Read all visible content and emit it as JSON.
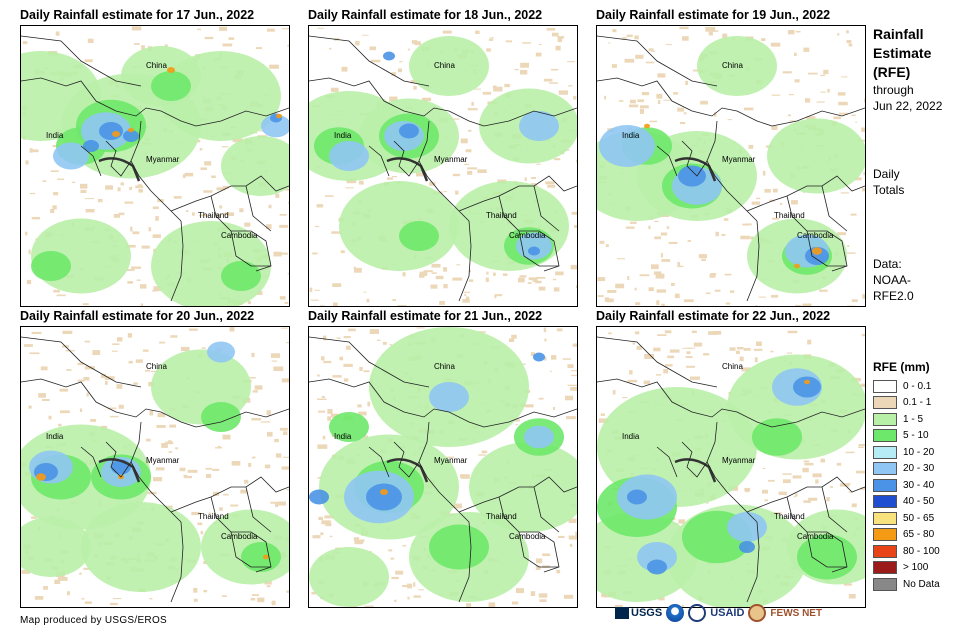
{
  "panels": [
    {
      "title": "Daily Rainfall estimate for 17 Jun., 2022"
    },
    {
      "title": "Daily Rainfall estimate for 18 Jun., 2022"
    },
    {
      "title": "Daily Rainfall estimate for 19 Jun., 2022"
    },
    {
      "title": "Daily Rainfall estimate for 20 Jun., 2022"
    },
    {
      "title": "Daily Rainfall estimate for 21 Jun., 2022"
    },
    {
      "title": "Daily Rainfall estimate for 22 Jun., 2022"
    }
  ],
  "map_labels": {
    "china": "China",
    "india": "India",
    "myanmar": "Myanmar",
    "thailand": "Thailand",
    "cambodia": "Cambodia"
  },
  "side": {
    "title_line1": "Rainfall",
    "title_line2": "Estimate",
    "title_line3": "(RFE)",
    "through": "through",
    "through_date": "Jun 22, 2022",
    "daily": "Daily",
    "totals": "Totals",
    "data_label": "Data:",
    "data_source1": "NOAA-",
    "data_source2": "RFE2.0"
  },
  "legend": {
    "title": "RFE (mm)",
    "items": [
      {
        "label": "0 - 0.1",
        "color": "#ffffff"
      },
      {
        "label": "0.1 - 1",
        "color": "#ecd8b8"
      },
      {
        "label": "1 - 5",
        "color": "#b9f0a8"
      },
      {
        "label": "5 - 10",
        "color": "#6ee86a"
      },
      {
        "label": "10 - 20",
        "color": "#b5ecf5"
      },
      {
        "label": "20 - 30",
        "color": "#8fc6f3"
      },
      {
        "label": "30 - 40",
        "color": "#4a93e6"
      },
      {
        "label": "40 - 50",
        "color": "#1f4fd0"
      },
      {
        "label": "50 - 65",
        "color": "#f7e27e"
      },
      {
        "label": "65 - 80",
        "color": "#f59a14"
      },
      {
        "label": "80 - 100",
        "color": "#e84418"
      },
      {
        "label": "> 100",
        "color": "#9b1b1b"
      },
      {
        "label": "No Data",
        "color": "#888888"
      }
    ]
  },
  "credit": "Map produced by USGS/EROS",
  "logos": {
    "usgs": "USGS",
    "usaid": "USAID",
    "fewsnet": "FEWS NET"
  },
  "blob_layers": [
    [
      {
        "c": "#b9f0a8",
        "b": [
          [
            20,
            70,
            60
          ],
          [
            110,
            100,
            70
          ],
          [
            200,
            70,
            60
          ],
          [
            60,
            230,
            50
          ],
          [
            190,
            240,
            60
          ],
          [
            140,
            50,
            40
          ],
          [
            240,
            140,
            40
          ]
        ]
      },
      {
        "c": "#6ee86a",
        "b": [
          [
            90,
            100,
            35
          ],
          [
            60,
            120,
            25
          ],
          [
            150,
            60,
            20
          ],
          [
            30,
            240,
            20
          ],
          [
            220,
            250,
            20
          ]
        ]
      },
      {
        "c": "#8fc6f3",
        "b": [
          [
            85,
            105,
            25
          ],
          [
            50,
            130,
            18
          ],
          [
            255,
            100,
            15
          ]
        ]
      },
      {
        "c": "#4a93e6",
        "b": [
          [
            90,
            105,
            12
          ],
          [
            110,
            110,
            8
          ],
          [
            70,
            120,
            8
          ],
          [
            255,
            92,
            6
          ]
        ]
      },
      {
        "c": "#f59a14",
        "b": [
          [
            95,
            108,
            4
          ],
          [
            150,
            44,
            4
          ],
          [
            258,
            90,
            3
          ],
          [
            110,
            104,
            3
          ]
        ]
      }
    ],
    [
      {
        "c": "#b9f0a8",
        "b": [
          [
            40,
            110,
            60
          ],
          [
            100,
            110,
            50
          ],
          [
            220,
            100,
            50
          ],
          [
            90,
            200,
            60
          ],
          [
            200,
            200,
            60
          ],
          [
            140,
            40,
            40
          ]
        ]
      },
      {
        "c": "#6ee86a",
        "b": [
          [
            100,
            110,
            30
          ],
          [
            30,
            120,
            25
          ],
          [
            220,
            220,
            25
          ],
          [
            110,
            210,
            20
          ]
        ]
      },
      {
        "c": "#8fc6f3",
        "b": [
          [
            95,
            110,
            20
          ],
          [
            40,
            130,
            20
          ],
          [
            230,
            100,
            20
          ],
          [
            225,
            220,
            18
          ]
        ]
      },
      {
        "c": "#4a93e6",
        "b": [
          [
            100,
            105,
            10
          ],
          [
            80,
            30,
            6
          ],
          [
            225,
            225,
            6
          ]
        ]
      }
    ],
    [
      {
        "c": "#b9f0a8",
        "b": [
          [
            40,
            150,
            60
          ],
          [
            100,
            150,
            60
          ],
          [
            220,
            130,
            50
          ],
          [
            200,
            230,
            50
          ],
          [
            140,
            40,
            40
          ]
        ]
      },
      {
        "c": "#6ee86a",
        "b": [
          [
            95,
            160,
            30
          ],
          [
            50,
            120,
            25
          ],
          [
            210,
            230,
            25
          ]
        ]
      },
      {
        "c": "#8fc6f3",
        "b": [
          [
            30,
            120,
            28
          ],
          [
            100,
            160,
            25
          ],
          [
            210,
            225,
            22
          ]
        ]
      },
      {
        "c": "#4a93e6",
        "b": [
          [
            95,
            150,
            14
          ],
          [
            220,
            230,
            12
          ]
        ]
      },
      {
        "c": "#f59a14",
        "b": [
          [
            220,
            225,
            5
          ],
          [
            50,
            100,
            3
          ],
          [
            200,
            240,
            3
          ]
        ]
      }
    ],
    [
      {
        "c": "#b9f0a8",
        "b": [
          [
            60,
            150,
            70
          ],
          [
            180,
            60,
            50
          ],
          [
            230,
            220,
            50
          ],
          [
            120,
            220,
            60
          ],
          [
            30,
            220,
            40
          ]
        ]
      },
      {
        "c": "#6ee86a",
        "b": [
          [
            40,
            150,
            30
          ],
          [
            100,
            150,
            30
          ],
          [
            240,
            230,
            20
          ],
          [
            200,
            90,
            20
          ]
        ]
      },
      {
        "c": "#8fc6f3",
        "b": [
          [
            30,
            140,
            22
          ],
          [
            100,
            145,
            20
          ],
          [
            200,
            25,
            14
          ]
        ]
      },
      {
        "c": "#4a93e6",
        "b": [
          [
            25,
            145,
            12
          ],
          [
            100,
            140,
            10
          ]
        ]
      },
      {
        "c": "#f59a14",
        "b": [
          [
            20,
            150,
            5
          ],
          [
            100,
            150,
            3
          ],
          [
            245,
            230,
            3
          ]
        ]
      }
    ],
    [
      {
        "c": "#b9f0a8",
        "b": [
          [
            140,
            60,
            80
          ],
          [
            80,
            160,
            70
          ],
          [
            220,
            160,
            60
          ],
          [
            160,
            230,
            60
          ],
          [
            40,
            250,
            40
          ]
        ]
      },
      {
        "c": "#6ee86a",
        "b": [
          [
            80,
            160,
            35
          ],
          [
            230,
            110,
            25
          ],
          [
            150,
            220,
            30
          ],
          [
            40,
            100,
            20
          ]
        ]
      },
      {
        "c": "#8fc6f3",
        "b": [
          [
            70,
            170,
            35
          ],
          [
            140,
            70,
            20
          ],
          [
            230,
            110,
            15
          ]
        ]
      },
      {
        "c": "#4a93e6",
        "b": [
          [
            75,
            170,
            18
          ],
          [
            10,
            170,
            10
          ],
          [
            230,
            30,
            6
          ]
        ]
      },
      {
        "c": "#f59a14",
        "b": [
          [
            75,
            165,
            4
          ]
        ]
      }
    ],
    [
      {
        "c": "#b9f0a8",
        "b": [
          [
            80,
            120,
            80
          ],
          [
            200,
            80,
            70
          ],
          [
            140,
            230,
            70
          ],
          [
            40,
            230,
            60
          ],
          [
            240,
            220,
            50
          ]
        ]
      },
      {
        "c": "#6ee86a",
        "b": [
          [
            40,
            180,
            40
          ],
          [
            120,
            210,
            35
          ],
          [
            230,
            230,
            30
          ],
          [
            180,
            110,
            25
          ]
        ]
      },
      {
        "c": "#8fc6f3",
        "b": [
          [
            50,
            170,
            30
          ],
          [
            200,
            60,
            25
          ],
          [
            150,
            200,
            20
          ],
          [
            60,
            230,
            20
          ]
        ]
      },
      {
        "c": "#4a93e6",
        "b": [
          [
            210,
            60,
            14
          ],
          [
            40,
            170,
            10
          ],
          [
            60,
            240,
            10
          ],
          [
            150,
            220,
            8
          ]
        ]
      },
      {
        "c": "#f59a14",
        "b": [
          [
            210,
            55,
            3
          ]
        ]
      }
    ]
  ]
}
